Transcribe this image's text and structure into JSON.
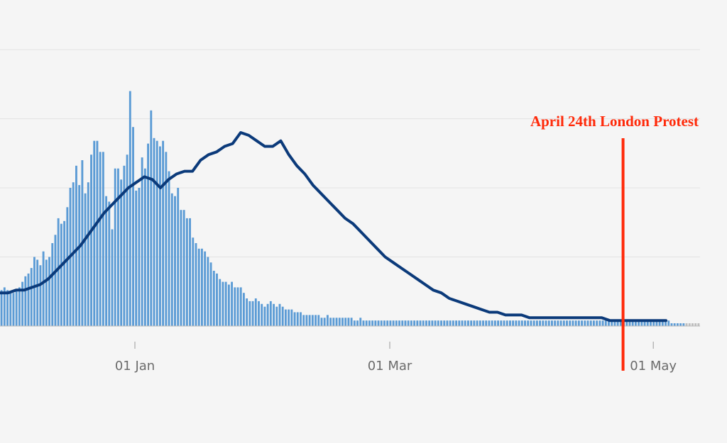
{
  "chart_data": {
    "type": "bar",
    "title": "",
    "xlabel": "",
    "ylabel": "",
    "x_axis": {
      "type": "date",
      "ticks": [
        {
          "label": "01 Jan",
          "date": "2021-01-01"
        },
        {
          "label": "01 Mar",
          "date": "2021-03-01"
        },
        {
          "label": "01 May",
          "date": "2021-05-01"
        }
      ]
    },
    "y_axis": {
      "labels_shown": false,
      "gridlines": true,
      "gridline_fractions": [
        0.25,
        0.5,
        0.75,
        1.0
      ]
    },
    "series": [
      {
        "kind": "bar",
        "color": "#5b9bd5",
        "provisional_color": "#bdbdbd"
      },
      {
        "kind": "line",
        "color": "#0b3a7a"
      }
    ],
    "bars_relative_to_peak": [
      0.13,
      0.14,
      0.13,
      0.12,
      0.12,
      0.13,
      0.14,
      0.16,
      0.18,
      0.19,
      0.21,
      0.25,
      0.24,
      0.22,
      0.27,
      0.24,
      0.25,
      0.3,
      0.33,
      0.39,
      0.37,
      0.38,
      0.43,
      0.5,
      0.52,
      0.58,
      0.51,
      0.6,
      0.48,
      0.52,
      0.62,
      0.67,
      0.67,
      0.63,
      0.63,
      0.47,
      0.45,
      0.35,
      0.57,
      0.57,
      0.53,
      0.58,
      0.62,
      0.85,
      0.72,
      0.49,
      0.5,
      0.61,
      0.57,
      0.66,
      0.78,
      0.68,
      0.67,
      0.65,
      0.67,
      0.63,
      0.56,
      0.48,
      0.47,
      0.5,
      0.42,
      0.42,
      0.39,
      0.39,
      0.32,
      0.3,
      0.28,
      0.28,
      0.27,
      0.25,
      0.23,
      0.2,
      0.19,
      0.17,
      0.16,
      0.16,
      0.15,
      0.16,
      0.14,
      0.14,
      0.14,
      0.12,
      0.1,
      0.09,
      0.09,
      0.1,
      0.09,
      0.08,
      0.07,
      0.08,
      0.09,
      0.08,
      0.07,
      0.08,
      0.07,
      0.06,
      0.06,
      0.06,
      0.05,
      0.05,
      0.05,
      0.04,
      0.04,
      0.04,
      0.04,
      0.04,
      0.04,
      0.03,
      0.03,
      0.04,
      0.03,
      0.03,
      0.03,
      0.03,
      0.03,
      0.03,
      0.03,
      0.03,
      0.02,
      0.02,
      0.03,
      0.02,
      0.02,
      0.02,
      0.02,
      0.02,
      0.02,
      0.02,
      0.02,
      0.02,
      0.02,
      0.02,
      0.02,
      0.02,
      0.02,
      0.02,
      0.02,
      0.02,
      0.02,
      0.02,
      0.02,
      0.02,
      0.02,
      0.02,
      0.02,
      0.02,
      0.02,
      0.02,
      0.02,
      0.02,
      0.02,
      0.02,
      0.02,
      0.02,
      0.02,
      0.02,
      0.02,
      0.02,
      0.02,
      0.02,
      0.02,
      0.02,
      0.02,
      0.02,
      0.02,
      0.02,
      0.02,
      0.02,
      0.02,
      0.02,
      0.02,
      0.02,
      0.02,
      0.02,
      0.02,
      0.02,
      0.02,
      0.02,
      0.02,
      0.02,
      0.02,
      0.02,
      0.02,
      0.02,
      0.02,
      0.02,
      0.02,
      0.02,
      0.02,
      0.02,
      0.02,
      0.02,
      0.02,
      0.02,
      0.02,
      0.02,
      0.02,
      0.02,
      0.02,
      0.02,
      0.02,
      0.02,
      0.02,
      0.02,
      0.02,
      0.02,
      0.02,
      0.02,
      0.02,
      0.02,
      0.02,
      0.02,
      0.02,
      0.02,
      0.02,
      0.02,
      0.02,
      0.02,
      0.02,
      0.02,
      0.02,
      0.02,
      0.02,
      0.02,
      0.01,
      0.01,
      0.01,
      0.01,
      0.01,
      0.01,
      0.01,
      0.01,
      0.01,
      0.01
    ],
    "provisional_last_days": 5,
    "line_relative_to_peak": [
      0.12,
      0.12,
      0.13,
      0.13,
      0.14,
      0.15,
      0.17,
      0.2,
      0.23,
      0.26,
      0.29,
      0.33,
      0.37,
      0.41,
      0.44,
      0.47,
      0.5,
      0.52,
      0.54,
      0.53,
      0.5,
      0.53,
      0.55,
      0.56,
      0.56,
      0.6,
      0.62,
      0.63,
      0.65,
      0.66,
      0.7,
      0.69,
      0.67,
      0.65,
      0.65,
      0.67,
      0.62,
      0.58,
      0.55,
      0.51,
      0.48,
      0.45,
      0.42,
      0.39,
      0.37,
      0.34,
      0.31,
      0.28,
      0.25,
      0.23,
      0.21,
      0.19,
      0.17,
      0.15,
      0.13,
      0.12,
      0.1,
      0.09,
      0.08,
      0.07,
      0.06,
      0.05,
      0.05,
      0.04,
      0.04,
      0.04,
      0.03,
      0.03,
      0.03,
      0.03,
      0.03,
      0.03,
      0.03,
      0.03,
      0.03,
      0.03,
      0.02,
      0.02,
      0.02,
      0.02,
      0.02,
      0.02,
      0.02,
      0.02
    ],
    "annotations": [
      {
        "label": "April 24th London Protest",
        "date": "2021-04-24",
        "color": "#ff2a0a"
      }
    ]
  }
}
